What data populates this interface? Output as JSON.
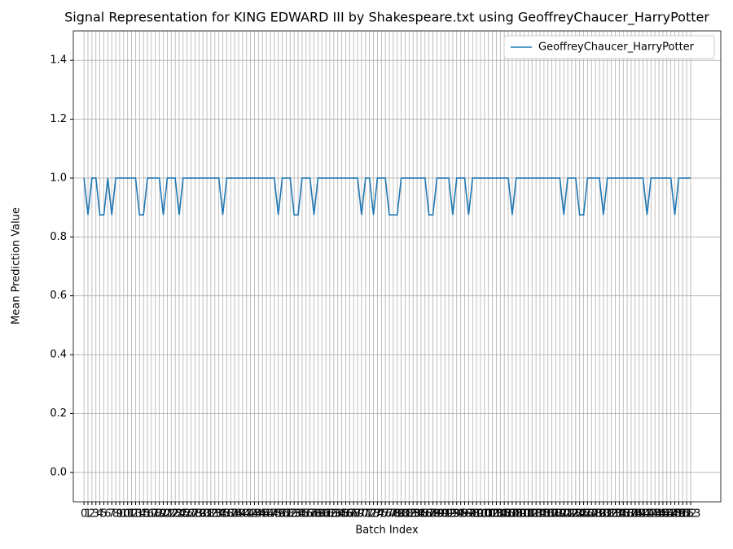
{
  "chart_data": {
    "type": "line",
    "title": "Signal Representation for KING EDWARD III by Shakespeare.txt using GeoffreyChaucer_HarryPotter",
    "xlabel": "Batch Index",
    "ylabel": "Mean Prediction Value",
    "x": [
      0,
      1,
      2,
      3,
      4,
      5,
      6,
      7,
      8,
      9,
      10,
      11,
      12,
      13,
      14,
      15,
      16,
      17,
      18,
      19,
      20,
      21,
      22,
      23,
      24,
      25,
      26,
      27,
      28,
      29,
      30,
      31,
      32,
      33,
      34,
      35,
      36,
      37,
      38,
      39,
      40,
      41,
      42,
      43,
      44,
      45,
      46,
      47,
      48,
      49,
      50,
      51,
      52,
      53,
      54,
      55,
      56,
      57,
      58,
      59,
      60,
      61,
      62,
      63,
      64,
      65,
      66,
      67,
      68,
      69,
      70,
      71,
      72,
      73,
      74,
      75,
      76,
      77,
      78,
      79,
      80,
      81,
      82,
      83,
      84,
      85,
      86,
      87,
      88,
      89,
      90,
      91,
      92,
      93,
      94,
      95,
      96,
      97,
      98,
      99,
      100,
      101,
      102,
      103,
      104,
      105,
      106,
      107,
      108,
      109,
      110,
      111,
      112,
      113,
      114,
      115,
      116,
      117,
      118,
      119,
      120,
      121,
      122,
      123,
      124,
      125,
      126,
      127,
      128,
      129,
      130,
      131,
      132,
      133,
      134,
      135,
      136,
      137,
      138,
      139,
      140,
      141,
      142,
      143,
      144,
      145,
      146,
      147,
      148,
      149,
      150,
      151,
      152,
      153
    ],
    "series": [
      {
        "name": "GeoffreyChaucer_HarryPotter",
        "color": "#1f77b4",
        "values": [
          1,
          0.875,
          1,
          1,
          0.875,
          0.875,
          1,
          0.875,
          1,
          1,
          1,
          1,
          1,
          1,
          0.875,
          0.875,
          1,
          1,
          1,
          1,
          0.875,
          1,
          1,
          1,
          0.875,
          1,
          1,
          1,
          1,
          1,
          1,
          1,
          1,
          1,
          1,
          0.875,
          1,
          1,
          1,
          1,
          1,
          1,
          1,
          1,
          1,
          1,
          1,
          1,
          1,
          0.875,
          1,
          1,
          1,
          0.875,
          0.875,
          1,
          1,
          1,
          0.875,
          1,
          1,
          1,
          1,
          1,
          1,
          1,
          1,
          1,
          1,
          1,
          0.875,
          1,
          1,
          0.875,
          1,
          1,
          1,
          0.875,
          0.875,
          0.875,
          1,
          1,
          1,
          1,
          1,
          1,
          1,
          0.875,
          0.875,
          1,
          1,
          1,
          1,
          0.875,
          1,
          1,
          1,
          0.875,
          1,
          1,
          1,
          1,
          1,
          1,
          1,
          1,
          1,
          1,
          0.875,
          1,
          1,
          1,
          1,
          1,
          1,
          1,
          1,
          1,
          1,
          1,
          1,
          0.875,
          1,
          1,
          1,
          0.875,
          0.875,
          1,
          1,
          1,
          1,
          0.875,
          1,
          1,
          1,
          1,
          1,
          1,
          1,
          1,
          1,
          1,
          0.875,
          1,
          1,
          1,
          1,
          1,
          1,
          0.875,
          1,
          1,
          1,
          1
        ]
      }
    ],
    "xlim": [
      -2.7,
      160.6
    ],
    "xticks": [
      0,
      1,
      2,
      3,
      4,
      5,
      6,
      7,
      8,
      9,
      10,
      11,
      12,
      13,
      14,
      15,
      16,
      17,
      18,
      19,
      20,
      21,
      22,
      23,
      24,
      25,
      26,
      27,
      28,
      29,
      30,
      31,
      32,
      33,
      34,
      35,
      36,
      37,
      38,
      39,
      40,
      41,
      42,
      43,
      44,
      45,
      46,
      47,
      48,
      49,
      50,
      51,
      52,
      53,
      54,
      55,
      56,
      57,
      58,
      59,
      60,
      61,
      62,
      63,
      64,
      65,
      66,
      67,
      68,
      69,
      70,
      71,
      72,
      73,
      74,
      75,
      76,
      77,
      78,
      79,
      80,
      81,
      82,
      83,
      84,
      85,
      86,
      87,
      88,
      89,
      90,
      91,
      92,
      93,
      94,
      95,
      96,
      97,
      98,
      99,
      100,
      101,
      102,
      103,
      104,
      105,
      106,
      107,
      108,
      109,
      110,
      111,
      112,
      113,
      114,
      115,
      116,
      117,
      118,
      119,
      120,
      121,
      122,
      123,
      124,
      125,
      126,
      127,
      128,
      129,
      130,
      131,
      132,
      133,
      134,
      135,
      136,
      137,
      138,
      139,
      140,
      141,
      142,
      143,
      144,
      145,
      146,
      147,
      148,
      149,
      150,
      151,
      152,
      153
    ],
    "ylim": [
      -0.1,
      1.5
    ],
    "yticks": [
      {
        "value": 0,
        "label": "0.0"
      },
      0.2,
      0.4,
      0.6,
      0.8,
      {
        "value": 1,
        "label": "1.0"
      },
      1.2,
      1.4
    ],
    "grid": true,
    "legend": "upper right"
  }
}
